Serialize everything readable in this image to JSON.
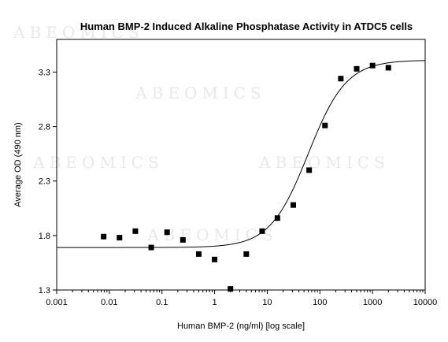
{
  "chart_data": {
    "type": "scatter",
    "title": "Human BMP-2 Induced Alkaline Phosphatase Activity in ATDC5 cells",
    "xlabel": "Human BMP-2 (ng/ml) [log scale]",
    "ylabel": "Average OD (490 nm)",
    "xscale": "log",
    "xlim": [
      0.001,
      10000
    ],
    "ylim": [
      1.3,
      3.6
    ],
    "xticks": [
      "0.001",
      "0.01",
      "0.1",
      "1",
      "10",
      "100",
      "1000",
      "10000"
    ],
    "xtick_values": [
      0.001,
      0.01,
      0.1,
      1,
      10,
      100,
      1000,
      10000
    ],
    "yticks": [
      "1.3",
      "1.8",
      "2.3",
      "2.8",
      "3.3"
    ],
    "ytick_values": [
      1.3,
      1.8,
      2.3,
      2.8,
      3.3
    ],
    "grid": false,
    "watermark": "ABEOMICS",
    "points": {
      "x": [
        0.0078,
        0.0156,
        0.03125,
        0.0625,
        0.125,
        0.25,
        0.5,
        1,
        2,
        4,
        8,
        15.6,
        31.25,
        62.5,
        125,
        250,
        500,
        1000,
        2000
      ],
      "y": [
        1.79,
        1.78,
        1.84,
        1.69,
        1.83,
        1.76,
        1.63,
        1.58,
        1.31,
        1.63,
        1.84,
        1.96,
        2.08,
        2.4,
        2.81,
        3.24,
        3.33,
        3.36,
        3.34
      ]
    },
    "fit_curve": {
      "model": "4PL",
      "bottom": 1.69,
      "top": 3.41,
      "ec50": 60,
      "hill": 1.2
    }
  }
}
